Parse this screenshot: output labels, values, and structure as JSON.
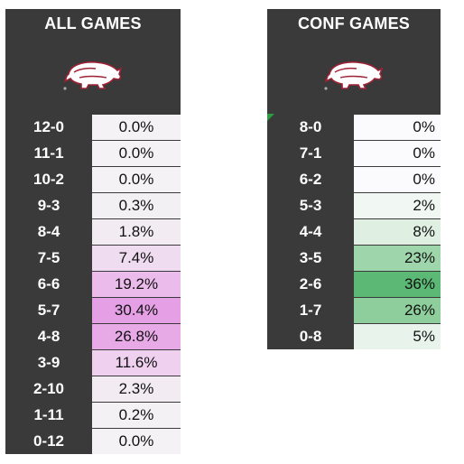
{
  "all_games": {
    "title": "ALL GAMES",
    "logo_icon": "razorback-hog-icon",
    "rows": [
      {
        "record": "12-0",
        "pct": "0.0%",
        "color": "#f4f2f4"
      },
      {
        "record": "11-1",
        "pct": "0.0%",
        "color": "#f4f2f4"
      },
      {
        "record": "10-2",
        "pct": "0.0%",
        "color": "#f4f2f4"
      },
      {
        "record": "9-3",
        "pct": "0.3%",
        "color": "#f3f0f3"
      },
      {
        "record": "8-4",
        "pct": "1.8%",
        "color": "#f2ecf2"
      },
      {
        "record": "7-5",
        "pct": "7.4%",
        "color": "#f0dcf0"
      },
      {
        "record": "6-6",
        "pct": "19.2%",
        "color": "#ebbbeb"
      },
      {
        "record": "5-7",
        "pct": "30.4%",
        "color": "#e5a0e5"
      },
      {
        "record": "4-8",
        "pct": "26.8%",
        "color": "#e7aae7"
      },
      {
        "record": "3-9",
        "pct": "11.6%",
        "color": "#efd1ef"
      },
      {
        "record": "2-10",
        "pct": "2.3%",
        "color": "#f2ebf2"
      },
      {
        "record": "1-11",
        "pct": "0.2%",
        "color": "#f3f1f3"
      },
      {
        "record": "0-12",
        "pct": "0.0%",
        "color": "#f4f2f4"
      }
    ]
  },
  "conf_games": {
    "title": "CONF GAMES",
    "logo_icon": "razorback-hog-icon",
    "rows": [
      {
        "record": "8-0",
        "pct": "0%",
        "color": "#fbfbfd"
      },
      {
        "record": "7-1",
        "pct": "0%",
        "color": "#fbfbfd"
      },
      {
        "record": "6-2",
        "pct": "0%",
        "color": "#fbfbfd"
      },
      {
        "record": "5-3",
        "pct": "2%",
        "color": "#f1f8f3"
      },
      {
        "record": "4-4",
        "pct": "8%",
        "color": "#dff0e3"
      },
      {
        "record": "3-5",
        "pct": "23%",
        "color": "#9fd5ab"
      },
      {
        "record": "2-6",
        "pct": "36%",
        "color": "#5cb975"
      },
      {
        "record": "1-7",
        "pct": "26%",
        "color": "#8dce9c"
      },
      {
        "record": "0-8",
        "pct": "5%",
        "color": "#e8f4eb"
      }
    ]
  }
}
